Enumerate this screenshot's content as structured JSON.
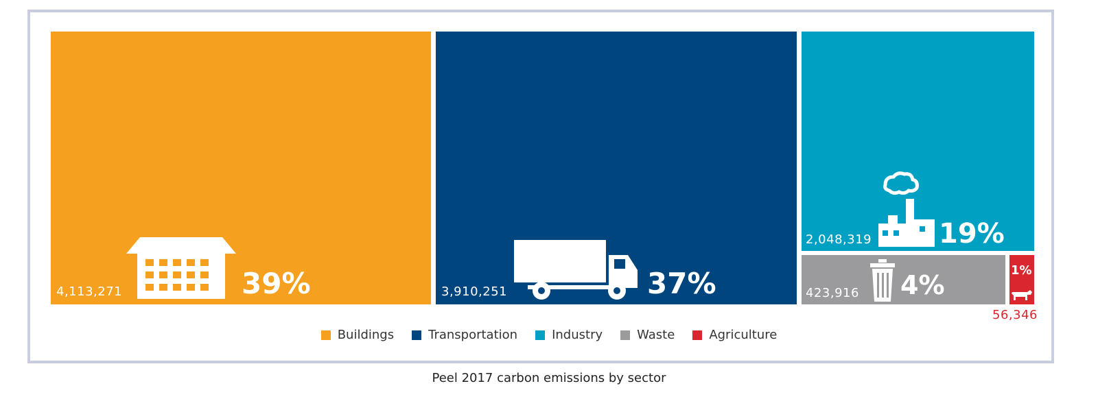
{
  "chart_data": {
    "type": "treemap",
    "title": "Peel 2017 carbon emissions by sector",
    "series": [
      {
        "name": "Buildings",
        "value": 4113271,
        "value_label": "4,113,271",
        "percent_label": "39%",
        "color": "#f5a01e",
        "icon": "building-icon"
      },
      {
        "name": "Transportation",
        "value": 3910251,
        "value_label": "3,910,251",
        "percent_label": "37%",
        "color": "#01457f",
        "icon": "truck-icon"
      },
      {
        "name": "Industry",
        "value": 2048319,
        "value_label": "2,048,319",
        "percent_label": "19%",
        "color": "#00a0c3",
        "icon": "factory-icon"
      },
      {
        "name": "Waste",
        "value": 423916,
        "value_label": "423,916",
        "percent_label": "4%",
        "color": "#9b9b9e",
        "icon": "trash-can-icon"
      },
      {
        "name": "Agriculture",
        "value": 56346,
        "value_label": "56,346",
        "percent_label": "1%",
        "color": "#d9262f",
        "icon": "cow-icon"
      }
    ],
    "legend_position": "bottom-center"
  },
  "caption": "Peel 2017 carbon emissions by sector"
}
